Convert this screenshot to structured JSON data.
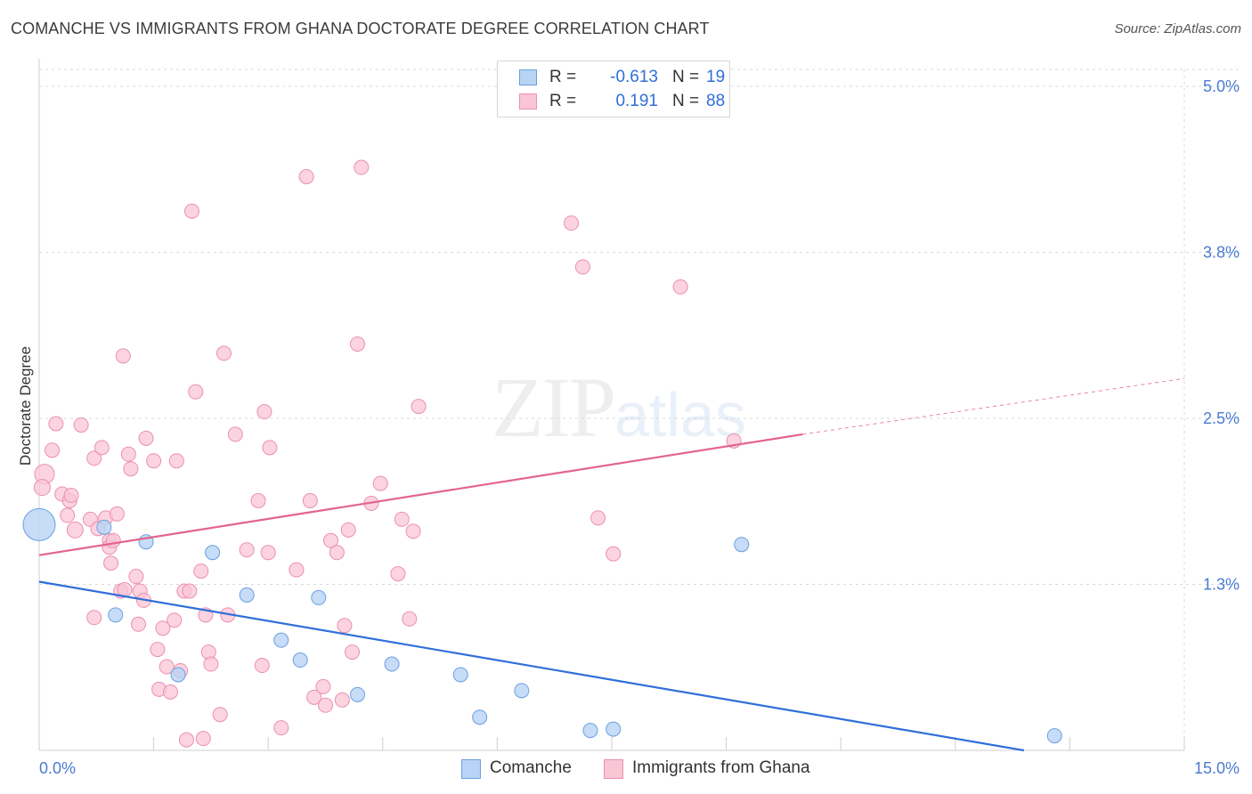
{
  "title": "COMANCHE VS IMMIGRANTS FROM GHANA DOCTORATE DEGREE CORRELATION CHART",
  "source": "Source: ZipAtlas.com",
  "watermark": {
    "zip": "ZIP",
    "atlas": "atlas"
  },
  "colors": {
    "comanche_fill": "#b8d3f5",
    "comanche_stroke": "#6a9fe0",
    "comanche_line": "#2f6fd8",
    "ghana_fill": "#f9c6d6",
    "ghana_stroke": "#ec8fae",
    "ghana_line": "#e3638f",
    "tick_label": "#4a7bd0",
    "grid": "#d9d9d9"
  },
  "stats": {
    "comanche": {
      "r_label": "R =",
      "r": "-0.613",
      "n_label": "N =",
      "n": "19"
    },
    "ghana": {
      "r_label": "R =",
      "r": "0.191",
      "n_label": "N =",
      "n": "88"
    }
  },
  "legend": {
    "comanche": "Comanche",
    "ghana": "Immigrants from Ghana"
  },
  "chart_data": {
    "type": "scatter",
    "title": "COMANCHE VS IMMIGRANTS FROM GHANA DOCTORATE DEGREE CORRELATION CHART",
    "xlabel": "",
    "ylabel": "Doctorate Degree",
    "xlim": [
      0,
      15
    ],
    "ylim": [
      0,
      5.0
    ],
    "x_tick_labels": [
      "0.0%",
      "15.0%"
    ],
    "y_ticks": [
      1.25,
      2.5,
      3.75,
      5.0
    ],
    "y_tick_labels": [
      "1.3%",
      "2.5%",
      "3.8%",
      "5.0%"
    ],
    "grid": true,
    "legend_position": "bottom-center",
    "series": [
      {
        "name": "Comanche",
        "points": [
          [
            0.0,
            1.7,
            18
          ],
          [
            0.85,
            1.68,
            8
          ],
          [
            1.0,
            1.02,
            8
          ],
          [
            1.4,
            1.57,
            8
          ],
          [
            1.82,
            0.57,
            8
          ],
          [
            2.27,
            1.49,
            8
          ],
          [
            2.72,
            1.17,
            8
          ],
          [
            3.17,
            0.83,
            8
          ],
          [
            3.42,
            0.68,
            8
          ],
          [
            3.66,
            1.15,
            8
          ],
          [
            4.17,
            0.42,
            8
          ],
          [
            4.62,
            0.65,
            8
          ],
          [
            5.52,
            0.57,
            8
          ],
          [
            5.77,
            0.25,
            8
          ],
          [
            6.32,
            0.45,
            8
          ],
          [
            7.22,
            0.15,
            8
          ],
          [
            7.52,
            0.16,
            8
          ],
          [
            9.2,
            1.55,
            8
          ],
          [
            13.3,
            0.11,
            8
          ]
        ],
        "trend": {
          "x": [
            0,
            12.9
          ],
          "y": [
            1.27,
            0.0
          ]
        }
      },
      {
        "name": "Immigrants from Ghana",
        "points": [
          [
            0.07,
            2.08,
            11
          ],
          [
            0.04,
            1.98,
            9
          ],
          [
            0.17,
            2.26,
            8
          ],
          [
            0.22,
            2.46,
            8
          ],
          [
            0.3,
            1.93,
            8
          ],
          [
            0.37,
            1.77,
            8
          ],
          [
            0.4,
            1.88,
            8
          ],
          [
            0.47,
            1.66,
            9
          ],
          [
            0.42,
            1.92,
            8
          ],
          [
            0.55,
            2.45,
            8
          ],
          [
            0.67,
            1.74,
            8
          ],
          [
            0.72,
            2.2,
            8
          ],
          [
            0.77,
            1.67,
            8
          ],
          [
            0.87,
            1.75,
            8
          ],
          [
            0.92,
            1.58,
            8
          ],
          [
            0.72,
            1.0,
            8
          ],
          [
            0.82,
            2.28,
            8
          ],
          [
            0.92,
            1.53,
            8
          ],
          [
            0.94,
            1.41,
            8
          ],
          [
            0.97,
            1.58,
            8
          ],
          [
            1.02,
            1.78,
            8
          ],
          [
            1.07,
            1.2,
            8
          ],
          [
            1.12,
            1.21,
            8
          ],
          [
            1.1,
            2.97,
            8
          ],
          [
            1.17,
            2.23,
            8
          ],
          [
            1.2,
            2.12,
            8
          ],
          [
            1.27,
            1.31,
            8
          ],
          [
            1.3,
            0.95,
            8
          ],
          [
            1.32,
            1.2,
            8
          ],
          [
            1.4,
            2.35,
            8
          ],
          [
            1.37,
            1.13,
            8
          ],
          [
            1.5,
            2.18,
            8
          ],
          [
            1.55,
            0.76,
            8
          ],
          [
            1.57,
            0.46,
            8
          ],
          [
            1.62,
            0.92,
            8
          ],
          [
            1.67,
            0.63,
            8
          ],
          [
            1.72,
            0.44,
            8
          ],
          [
            1.77,
            0.98,
            8
          ],
          [
            1.8,
            2.18,
            8
          ],
          [
            1.85,
            0.6,
            8
          ],
          [
            1.9,
            1.2,
            8
          ],
          [
            1.93,
            0.08,
            8
          ],
          [
            1.97,
            1.2,
            8
          ],
          [
            2.0,
            4.06,
            8
          ],
          [
            2.05,
            2.7,
            8
          ],
          [
            2.12,
            1.35,
            8
          ],
          [
            2.15,
            0.09,
            8
          ],
          [
            2.18,
            1.02,
            8
          ],
          [
            2.22,
            0.74,
            8
          ],
          [
            2.25,
            0.65,
            8
          ],
          [
            2.37,
            0.27,
            8
          ],
          [
            2.42,
            2.99,
            8
          ],
          [
            2.47,
            1.02,
            8
          ],
          [
            2.57,
            2.38,
            8
          ],
          [
            2.72,
            1.51,
            8
          ],
          [
            2.87,
            1.88,
            8
          ],
          [
            2.92,
            0.64,
            8
          ],
          [
            2.95,
            2.55,
            8
          ],
          [
            3.0,
            1.49,
            8
          ],
          [
            3.02,
            2.28,
            8
          ],
          [
            3.17,
            0.17,
            8
          ],
          [
            3.37,
            1.36,
            8
          ],
          [
            3.5,
            4.32,
            8
          ],
          [
            3.55,
            1.88,
            8
          ],
          [
            3.6,
            0.4,
            8
          ],
          [
            3.72,
            0.48,
            8
          ],
          [
            3.75,
            0.34,
            8
          ],
          [
            3.82,
            1.58,
            8
          ],
          [
            3.9,
            1.49,
            8
          ],
          [
            3.97,
            0.38,
            8
          ],
          [
            4.0,
            0.94,
            8
          ],
          [
            4.05,
            1.66,
            8
          ],
          [
            4.1,
            0.74,
            8
          ],
          [
            4.22,
            4.39,
            8
          ],
          [
            4.17,
            3.06,
            8
          ],
          [
            4.35,
            1.86,
            8
          ],
          [
            4.47,
            2.01,
            8
          ],
          [
            4.7,
            1.33,
            8
          ],
          [
            4.75,
            1.74,
            8
          ],
          [
            4.85,
            0.99,
            8
          ],
          [
            4.9,
            1.65,
            8
          ],
          [
            4.97,
            2.59,
            8
          ],
          [
            6.97,
            3.97,
            8
          ],
          [
            7.12,
            3.64,
            8
          ],
          [
            7.32,
            1.75,
            8
          ],
          [
            7.52,
            1.48,
            8
          ],
          [
            8.4,
            3.49,
            8
          ],
          [
            9.1,
            2.33,
            8
          ]
        ],
        "trend": {
          "x": [
            0,
            10.0
          ],
          "y": [
            1.47,
            2.38
          ]
        },
        "trend_dashed": {
          "x": [
            10.0,
            15.0
          ],
          "y": [
            2.38,
            2.8
          ]
        }
      }
    ]
  }
}
